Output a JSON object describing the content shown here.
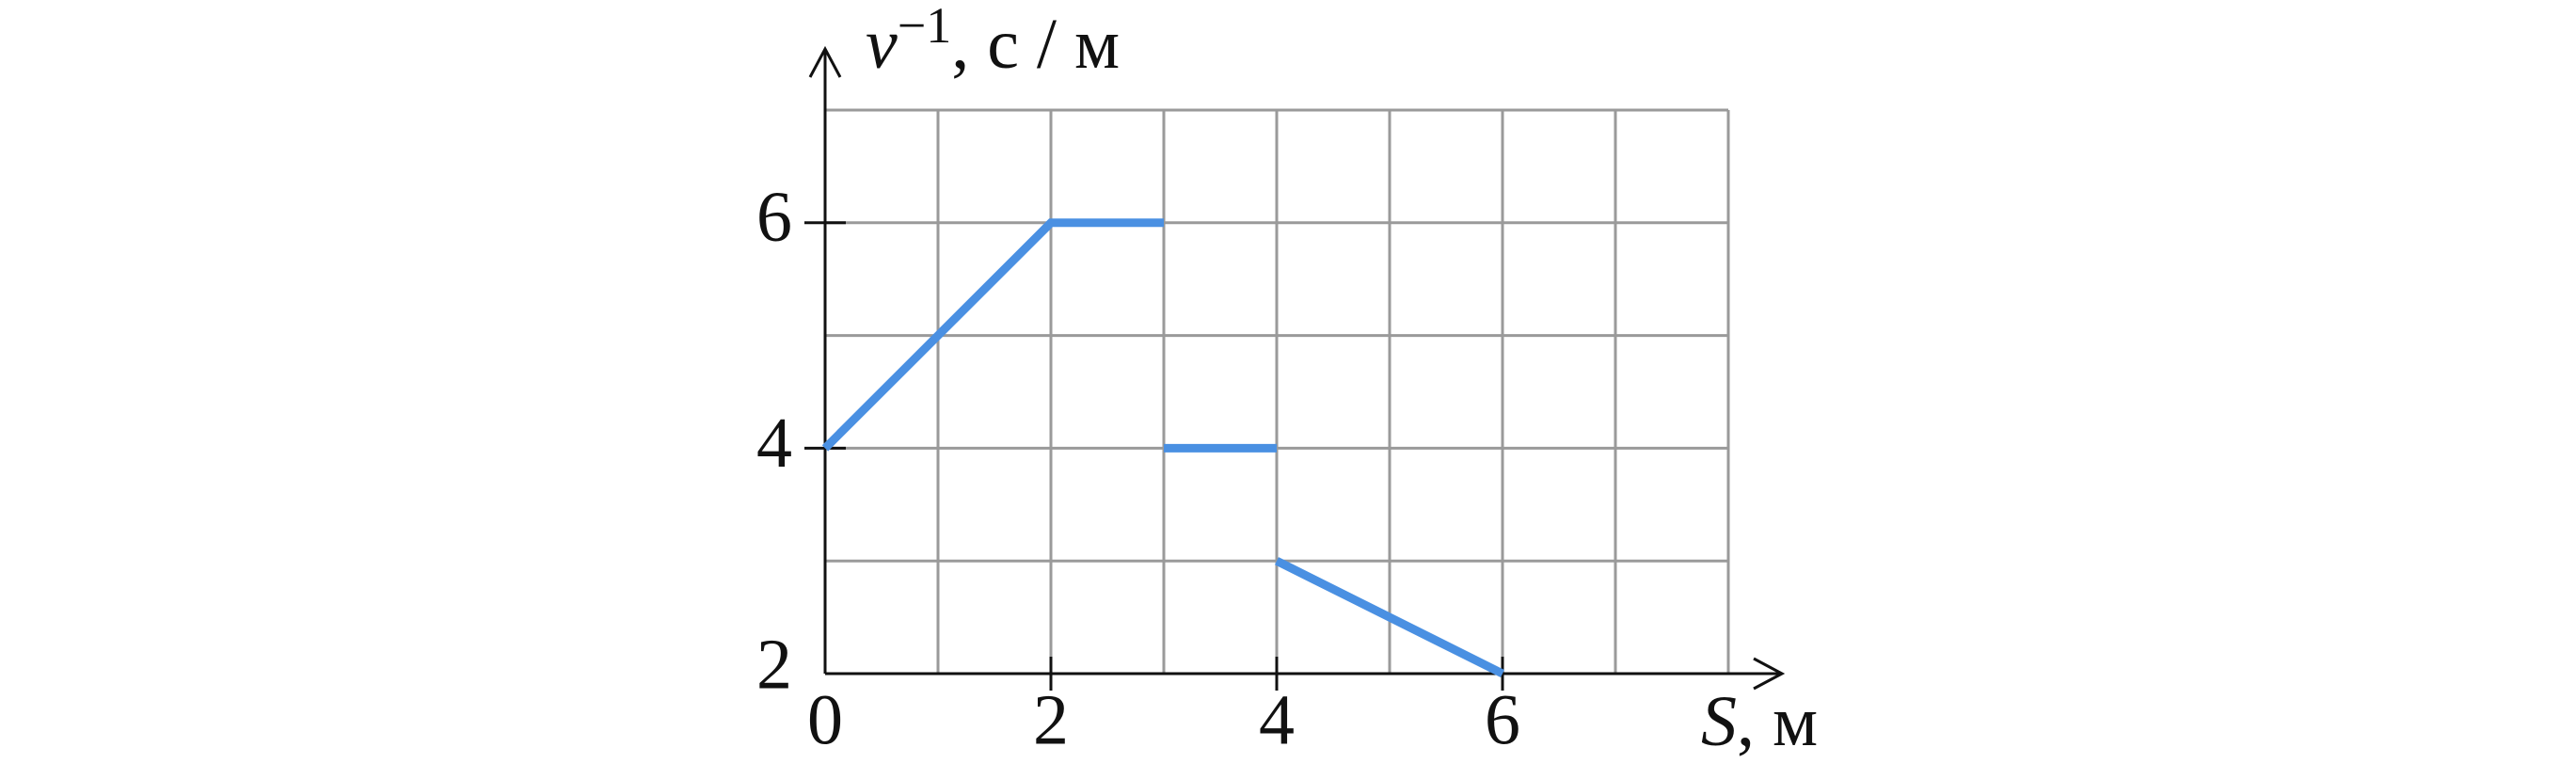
{
  "chart_data": {
    "type": "line",
    "xlabel": {
      "symbol": "S",
      "unit": ", м"
    },
    "ylabel": {
      "symbol": "v",
      "exponent": "−1",
      "unit": ", с / м"
    },
    "x": [
      0,
      2,
      3,
      null,
      3,
      4,
      null,
      4,
      6
    ],
    "series": [
      {
        "color": "#4a90e2",
        "values": [
          4,
          6,
          6,
          null,
          4,
          4,
          null,
          3,
          2
        ]
      }
    ],
    "xlim": [
      0,
      8
    ],
    "ylim": [
      2,
      7
    ],
    "xticks": [
      0,
      2,
      4,
      6
    ],
    "yticks": [
      2,
      4,
      6
    ],
    "grid": true
  }
}
